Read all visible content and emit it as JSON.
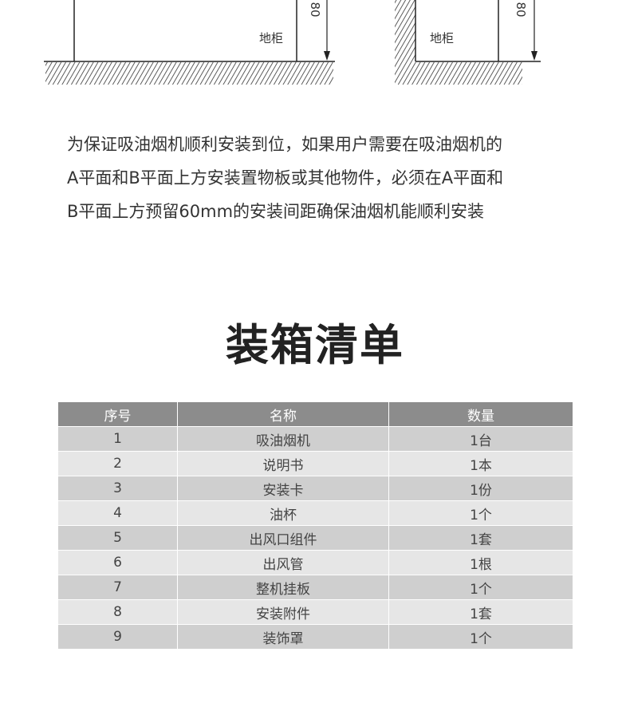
{
  "diagram": {
    "left_label": "地柜",
    "left_dimension": "80",
    "right_label": "地柜",
    "right_dimension": "80"
  },
  "note": {
    "lines": [
      "为保证吸油烟机顺利安装到位，如果用户需要在吸油烟机的",
      "A平面和B平面上方安装置物板或其他物件，必须在A平面和",
      "B平面上方预留60mm的安装间距确保油烟机能顺利安装"
    ]
  },
  "packing_list": {
    "title": "装箱清单",
    "headers": [
      "序号",
      "名称",
      "数量"
    ],
    "rows": [
      [
        "1",
        "吸油烟机",
        "1台"
      ],
      [
        "2",
        "说明书",
        "1本"
      ],
      [
        "3",
        "安装卡",
        "1份"
      ],
      [
        "4",
        "油杯",
        "1个"
      ],
      [
        "5",
        "出风口组件",
        "1套"
      ],
      [
        "6",
        "出风管",
        "1根"
      ],
      [
        "7",
        "整机挂板",
        "1个"
      ],
      [
        "8",
        "安装附件",
        "1套"
      ],
      [
        "9",
        "装饰罩",
        "1个"
      ]
    ]
  }
}
